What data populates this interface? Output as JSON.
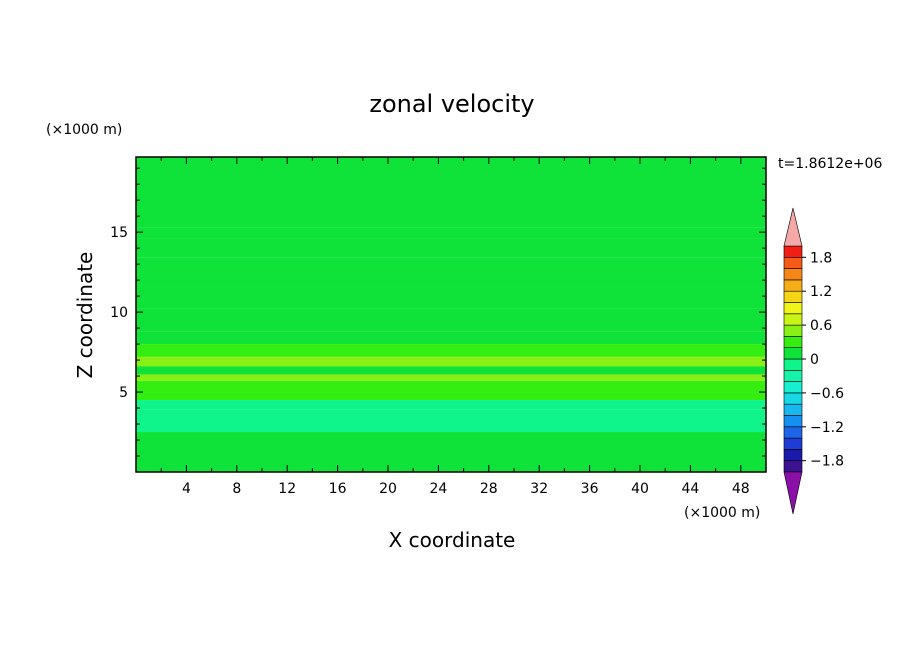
{
  "chart_data": {
    "type": "heatmap",
    "title": "zonal velocity",
    "xlabel": "X coordinate",
    "ylabel": "Z coordinate",
    "x_unit": "(×1000 m)",
    "y_unit": "(×1000 m)",
    "time_label": "t=1.8612e+06",
    "xlim": [
      0,
      50
    ],
    "ylim": [
      0,
      19.7
    ],
    "x_ticks": [
      "4",
      "8",
      "12",
      "16",
      "20",
      "24",
      "28",
      "32",
      "36",
      "40",
      "44",
      "48"
    ],
    "y_ticks": [
      "5",
      "10",
      "15"
    ],
    "colorbar": {
      "min": -2.0,
      "max": 2.0,
      "step": 0.2,
      "labels": [
        "1.8",
        "1.2",
        "0.6",
        "0",
        "−0.6",
        "−1.2",
        "−1.8"
      ],
      "colors": [
        "#3b1290",
        "#1a1aa8",
        "#1f3cd4",
        "#1e66e8",
        "#1490f0",
        "#17b8ee",
        "#17d8e4",
        "#17f0d0",
        "#14f3aa",
        "#10f48c",
        "#0fe33a",
        "#33ee10",
        "#88f015",
        "#c8f515",
        "#f0f518",
        "#f5d617",
        "#f5ae18",
        "#f58618",
        "#f55a18",
        "#f01e14"
      ],
      "over_color": "#f5a8a8",
      "under_color": "#8a10a8"
    },
    "bands": [
      {
        "z0": 15.3,
        "z1": 19.7,
        "v": 0.15
      },
      {
        "z0": 14.6,
        "z1": 15.3,
        "v": 0.0
      },
      {
        "z0": 13.4,
        "z1": 14.6,
        "v": 0.15
      },
      {
        "z0": 11.6,
        "z1": 13.4,
        "v": 0.0
      },
      {
        "z0": 10.2,
        "z1": 11.6,
        "v": 0.15
      },
      {
        "z0": 8.8,
        "z1": 10.2,
        "v": 0.0
      },
      {
        "z0": 8.0,
        "z1": 8.8,
        "v": 0.15
      },
      {
        "z0": 7.2,
        "z1": 8.0,
        "v": 0.25
      },
      {
        "z0": 6.6,
        "z1": 7.2,
        "v": 0.45
      },
      {
        "z0": 6.1,
        "z1": 6.6,
        "v": 0.15
      },
      {
        "z0": 5.7,
        "z1": 6.1,
        "v": 0.5
      },
      {
        "z0": 5.0,
        "z1": 5.7,
        "v": 0.25
      },
      {
        "z0": 4.5,
        "z1": 5.0,
        "v": 0.35
      },
      {
        "z0": 3.9,
        "z1": 4.5,
        "v": -0.2
      },
      {
        "z0": 2.5,
        "z1": 3.9,
        "v": -0.05
      },
      {
        "z0": 0.0,
        "z1": 2.5,
        "v": 0.05
      }
    ]
  }
}
